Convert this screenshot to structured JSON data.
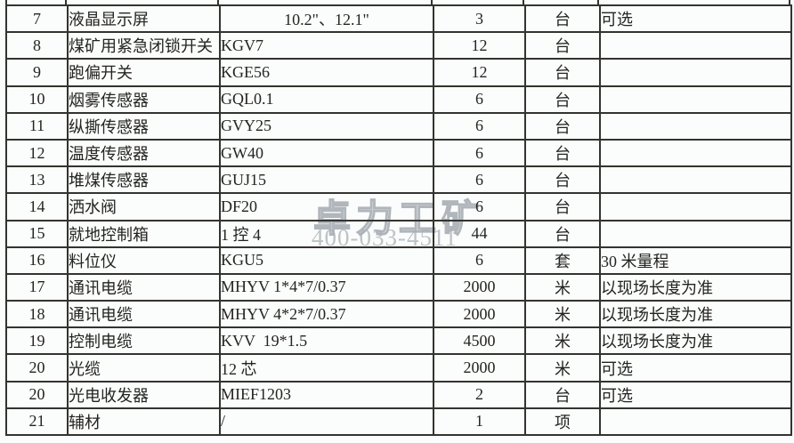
{
  "table": {
    "rows": [
      {
        "no": "7",
        "name": "液晶显示屏",
        "model": "10.2\"、12.1\"",
        "qty": "3",
        "unit": "台",
        "note": "可选"
      },
      {
        "no": "8",
        "name": "煤矿用紧急闭锁开关",
        "model": "KGV7",
        "qty": "12",
        "unit": "台",
        "note": ""
      },
      {
        "no": "9",
        "name": "跑偏开关",
        "model": "KGE56",
        "qty": "12",
        "unit": "台",
        "note": ""
      },
      {
        "no": "10",
        "name": "烟雾传感器",
        "model": "GQL0.1",
        "qty": "6",
        "unit": "台",
        "note": ""
      },
      {
        "no": "11",
        "name": "纵撕传感器",
        "model": "GVY25",
        "qty": "6",
        "unit": "台",
        "note": ""
      },
      {
        "no": "12",
        "name": "温度传感器",
        "model": "GW40",
        "qty": "6",
        "unit": "台",
        "note": ""
      },
      {
        "no": "13",
        "name": "堆煤传感器",
        "model": "GUJ15",
        "qty": "6",
        "unit": "台",
        "note": ""
      },
      {
        "no": "14",
        "name": "洒水阀",
        "model": "DF20",
        "qty": "6",
        "unit": "台",
        "note": ""
      },
      {
        "no": "15",
        "name": "就地控制箱",
        "model": "1 控 4",
        "qty": "44",
        "unit": "台",
        "note": ""
      },
      {
        "no": "16",
        "name": "料位仪",
        "model": "KGU5",
        "qty": "6",
        "unit": "套",
        "note": "30 米量程"
      },
      {
        "no": "17",
        "name": "通讯电缆",
        "model": "MHYV 1*4*7/0.37",
        "qty": "2000",
        "unit": "米",
        "note": "以现场长度为准"
      },
      {
        "no": "18",
        "name": "通讯电缆",
        "model": "MHYV 4*2*7/0.37",
        "qty": "2000",
        "unit": "米",
        "note": "以现场长度为准"
      },
      {
        "no": "19",
        "name": "控制电缆",
        "model": "KVV  19*1.5",
        "qty": "4500",
        "unit": "米",
        "note": "以现场长度为准"
      },
      {
        "no": "20",
        "name": "光缆",
        "model": "12 芯",
        "qty": "2000",
        "unit": "米",
        "note": "可选"
      },
      {
        "no": "20",
        "name": "光电收发器",
        "model": "MIEF1203",
        "qty": "2",
        "unit": "台",
        "note": "可选"
      },
      {
        "no": "21",
        "name": "辅材",
        "model": "/",
        "qty": "1",
        "unit": "项",
        "note": ""
      }
    ]
  },
  "watermark": {
    "brand": "卓力工矿",
    "phone": "400-033-4511"
  },
  "colors": {
    "border": "#33332f",
    "cell_bg": "#fbfcfc",
    "text": "#242420",
    "watermark": "#aab0b5"
  }
}
